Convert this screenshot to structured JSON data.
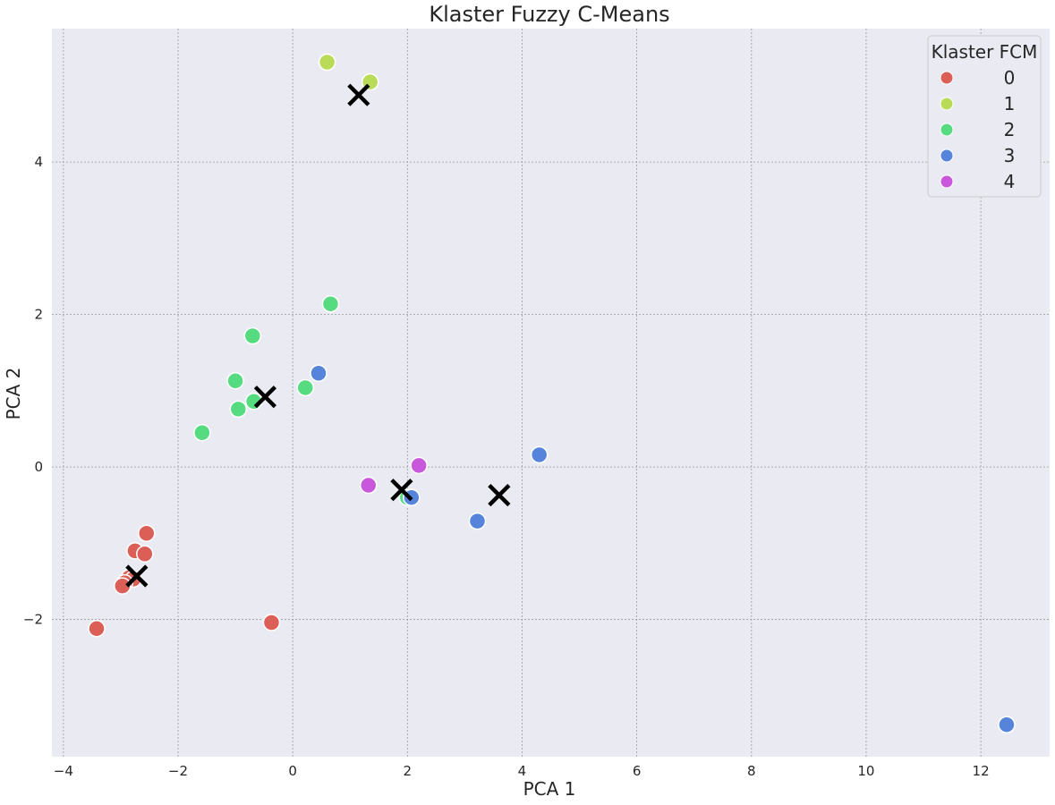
{
  "chart_data": {
    "type": "scatter",
    "title": "Klaster Fuzzy C-Means",
    "xlabel": "PCA 1",
    "ylabel": "PCA 2",
    "xlim": [
      -4.2,
      13.2
    ],
    "ylim": [
      -3.8,
      5.75
    ],
    "xticks": [
      -4,
      -2,
      0,
      2,
      4,
      6,
      8,
      10,
      12
    ],
    "yticks": [
      -2,
      0,
      2,
      4
    ],
    "grid": true,
    "legend": {
      "title": "Klaster FCM",
      "placement": "top-right",
      "entries": [
        "0",
        "1",
        "2",
        "3",
        "4"
      ]
    },
    "colors": {
      "0": "#db5f57",
      "1": "#b9db57",
      "2": "#57db80",
      "3": "#5784db",
      "4": "#c957db",
      "centroid": "#000000",
      "background": "#eaeaf2",
      "grid": "#9a9a9a"
    },
    "series": [
      {
        "name": "0",
        "points": [
          [
            -2.55,
            -0.87
          ],
          [
            -2.75,
            -1.1
          ],
          [
            -2.58,
            -1.14
          ],
          [
            -2.85,
            -1.45
          ],
          [
            -2.78,
            -1.47
          ],
          [
            -2.93,
            -1.52
          ],
          [
            -2.97,
            -1.56
          ],
          [
            -3.42,
            -2.12
          ],
          [
            -0.37,
            -2.04
          ]
        ]
      },
      {
        "name": "1",
        "points": [
          [
            0.6,
            5.31
          ],
          [
            1.35,
            5.05
          ]
        ]
      },
      {
        "name": "2",
        "points": [
          [
            0.66,
            2.14
          ],
          [
            -0.7,
            1.72
          ],
          [
            -1.0,
            1.13
          ],
          [
            0.22,
            1.04
          ],
          [
            -0.95,
            0.76
          ],
          [
            -0.68,
            0.86
          ],
          [
            -1.58,
            0.45
          ],
          [
            2.0,
            -0.4
          ]
        ]
      },
      {
        "name": "3",
        "points": [
          [
            0.45,
            1.23
          ],
          [
            2.07,
            -0.4
          ],
          [
            3.22,
            -0.71
          ],
          [
            4.3,
            0.16
          ],
          [
            12.45,
            -3.38
          ]
        ]
      },
      {
        "name": "4",
        "points": [
          [
            2.2,
            0.02
          ],
          [
            1.32,
            -0.24
          ]
        ]
      }
    ],
    "centroids": [
      [
        -2.72,
        -1.43
      ],
      [
        1.15,
        4.88
      ],
      [
        -0.48,
        0.92
      ],
      [
        1.9,
        -0.3
      ],
      [
        3.6,
        -0.37
      ]
    ]
  }
}
